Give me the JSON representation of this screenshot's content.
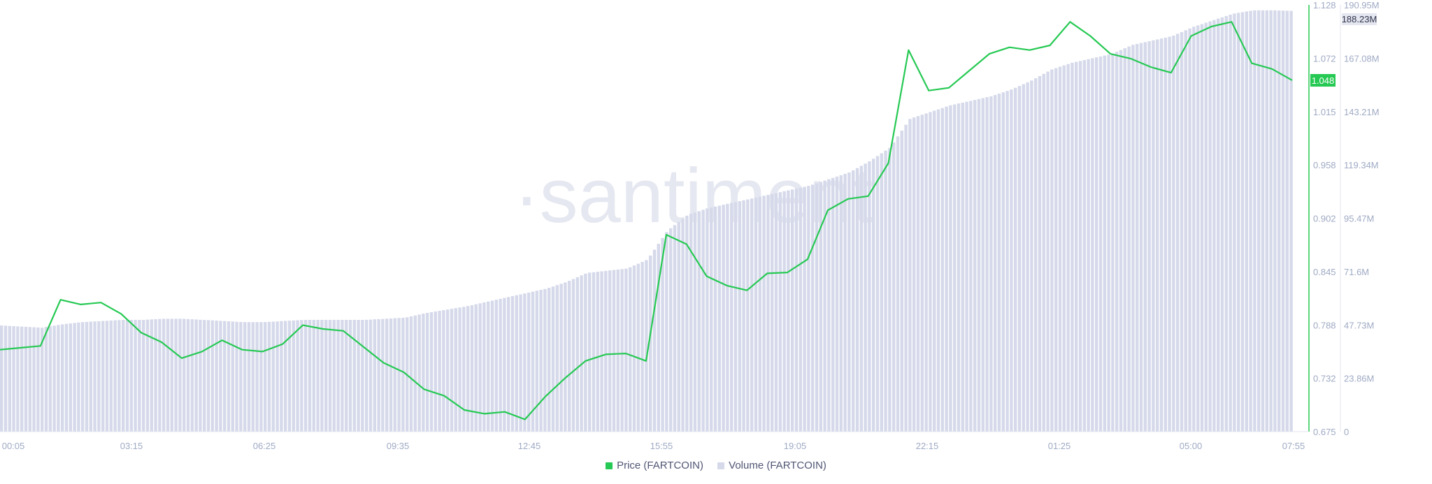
{
  "watermark": "·santiment",
  "chart_data": {
    "type": "line+bar",
    "x_ticks": [
      "00:05",
      "03:15",
      "06:25",
      "09:35",
      "12:45",
      "15:55",
      "19:05",
      "22:15",
      "01:25",
      "05:00",
      "07:55"
    ],
    "price_axis": {
      "ticks": [
        "1.128",
        "1.072",
        "1.015",
        "0.958",
        "0.902",
        "0.845",
        "0.788",
        "0.732",
        "0.675"
      ],
      "range": [
        0.675,
        1.128
      ]
    },
    "volume_axis": {
      "ticks": [
        "190.95M",
        "167.08M",
        "143.21M",
        "119.34M",
        "95.47M",
        "71.6M",
        "47.73M",
        "23.86M",
        "0"
      ],
      "range": [
        0,
        190.95
      ]
    },
    "current_price_label": "1.048",
    "current_volume_label": "188.23M",
    "series": [
      {
        "name": "Price (FARTCOIN)",
        "type": "line",
        "color": "#26c953",
        "values": [
          0.762,
          0.764,
          0.766,
          0.815,
          0.81,
          0.812,
          0.8,
          0.78,
          0.77,
          0.753,
          0.76,
          0.772,
          0.762,
          0.76,
          0.768,
          0.788,
          0.784,
          0.782,
          0.765,
          0.748,
          0.738,
          0.72,
          0.713,
          0.698,
          0.694,
          0.696,
          0.688,
          0.712,
          0.732,
          0.75,
          0.757,
          0.758,
          0.75,
          0.884,
          0.874,
          0.84,
          0.83,
          0.825,
          0.843,
          0.844,
          0.858,
          0.91,
          0.922,
          0.925,
          0.96,
          1.08,
          1.037,
          1.04,
          1.058,
          1.076,
          1.083,
          1.08,
          1.085,
          1.11,
          1.095,
          1.076,
          1.071,
          1.062,
          1.056,
          1.095,
          1.105,
          1.11,
          1.066,
          1.06,
          1.048
        ]
      },
      {
        "name": "Volume (FARTCOIN)",
        "type": "bar",
        "color": "#d5d9ea",
        "unit": "M",
        "values": [
          47.5,
          47,
          46.5,
          48,
          49,
          49.5,
          50,
          50,
          50.5,
          50.5,
          50,
          49.5,
          49,
          49,
          49.5,
          50,
          50,
          50,
          50,
          50.5,
          51,
          53,
          54.5,
          56,
          58,
          60,
          62,
          64,
          67,
          71,
          72,
          73,
          77,
          90,
          97,
          100,
          102,
          104,
          106,
          108,
          110,
          113,
          116,
          121,
          127,
          140,
          143,
          146,
          148,
          150,
          153,
          157,
          162,
          165,
          167,
          169,
          173,
          175,
          177,
          181,
          184,
          187,
          188.5,
          188.5,
          188.23
        ]
      }
    ],
    "legend_placement": "bottom",
    "grid": false
  }
}
